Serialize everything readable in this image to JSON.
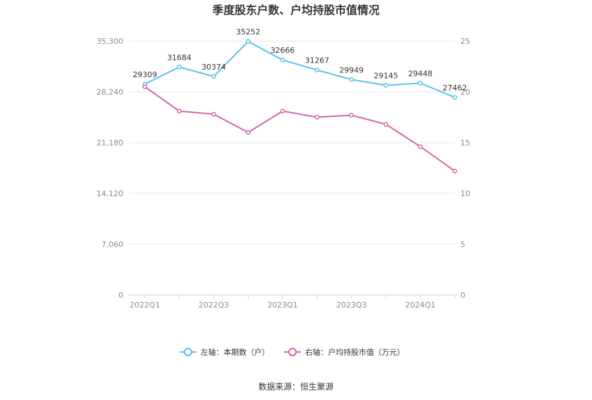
{
  "chart_data": {
    "type": "line",
    "title": "季度股东户数、户均持股市值情况",
    "categories": [
      "2022Q1",
      "2022Q2",
      "2022Q3",
      "2022Q4",
      "2023Q1",
      "2023Q2",
      "2023Q3",
      "2023Q4",
      "2024Q1",
      "2024Q2"
    ],
    "x_tick_labels": [
      "2022Q1",
      "2022Q3",
      "2023Q1",
      "2023Q3",
      "2024Q1"
    ],
    "left_axis": {
      "ticks": [
        "0",
        "7,060",
        "14,120",
        "21,180",
        "28,240",
        "35,300"
      ],
      "ylim": [
        0,
        35300
      ]
    },
    "right_axis": {
      "ticks": [
        "0",
        "5",
        "10",
        "15",
        "20",
        "25"
      ],
      "ylim": [
        0,
        25
      ]
    },
    "series": [
      {
        "name": "左轴：本期数（户）",
        "axis": "left",
        "color": "#5bc0eb",
        "values": [
          29309,
          31684,
          30374,
          35252,
          32666,
          31267,
          29949,
          29145,
          29448,
          27462
        ],
        "labels": [
          "29309",
          "31684",
          "30374",
          "35252",
          "32666",
          "31267",
          "29949",
          "29145",
          "29448",
          "27462"
        ]
      },
      {
        "name": "右轴：户均持股市值（万元）",
        "axis": "right",
        "color": "#d464a8",
        "values": [
          20.5,
          18.1,
          17.8,
          16.0,
          18.1,
          17.5,
          17.7,
          16.8,
          14.6,
          12.2
        ]
      }
    ],
    "grid": true,
    "legend_position": "bottom"
  },
  "source": "数据来源：恒生聚源"
}
